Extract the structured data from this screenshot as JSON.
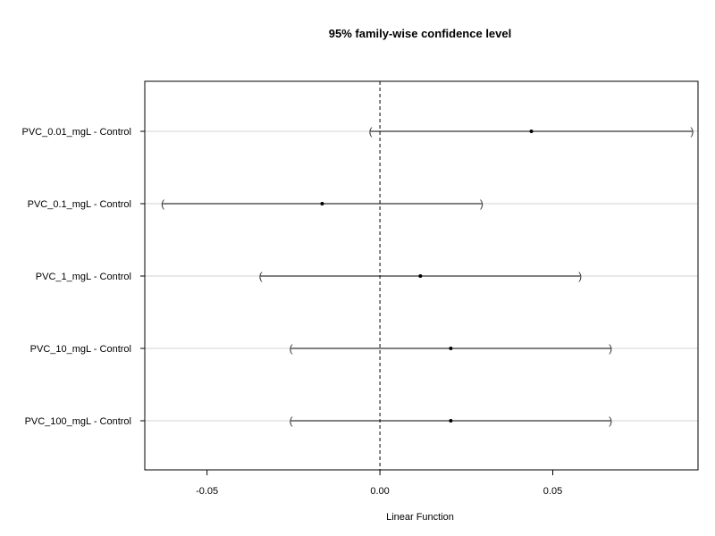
{
  "chart_data": {
    "type": "scatter",
    "title": "95% family-wise confidence level",
    "xlabel": "Linear Function",
    "ylabel": "",
    "xlim": [
      -0.068,
      0.092
    ],
    "x_ticks": [
      -0.05,
      0.0,
      0.05
    ],
    "x_tick_labels": [
      "-0.05",
      "0.00",
      "0.05"
    ],
    "reference_line": 0.0,
    "grid": "horizontal",
    "categories": [
      "PVC_0.01_mgL - Control",
      "PVC_0.1_mgL - Control",
      "PVC_1_mgL - Control",
      "PVC_10_mgL - Control",
      "PVC_100_mgL - Control"
    ],
    "estimates": [
      0.0438,
      -0.0167,
      0.0117,
      0.0205,
      0.0205
    ],
    "lower": [
      -0.0027,
      -0.0628,
      -0.0345,
      -0.0257,
      -0.0257
    ],
    "upper": [
      0.0903,
      0.0294,
      0.0579,
      0.0667,
      0.0667
    ],
    "colors": {
      "interval": "#000000",
      "grid": "#d3d3d3",
      "point": "#000000"
    }
  }
}
